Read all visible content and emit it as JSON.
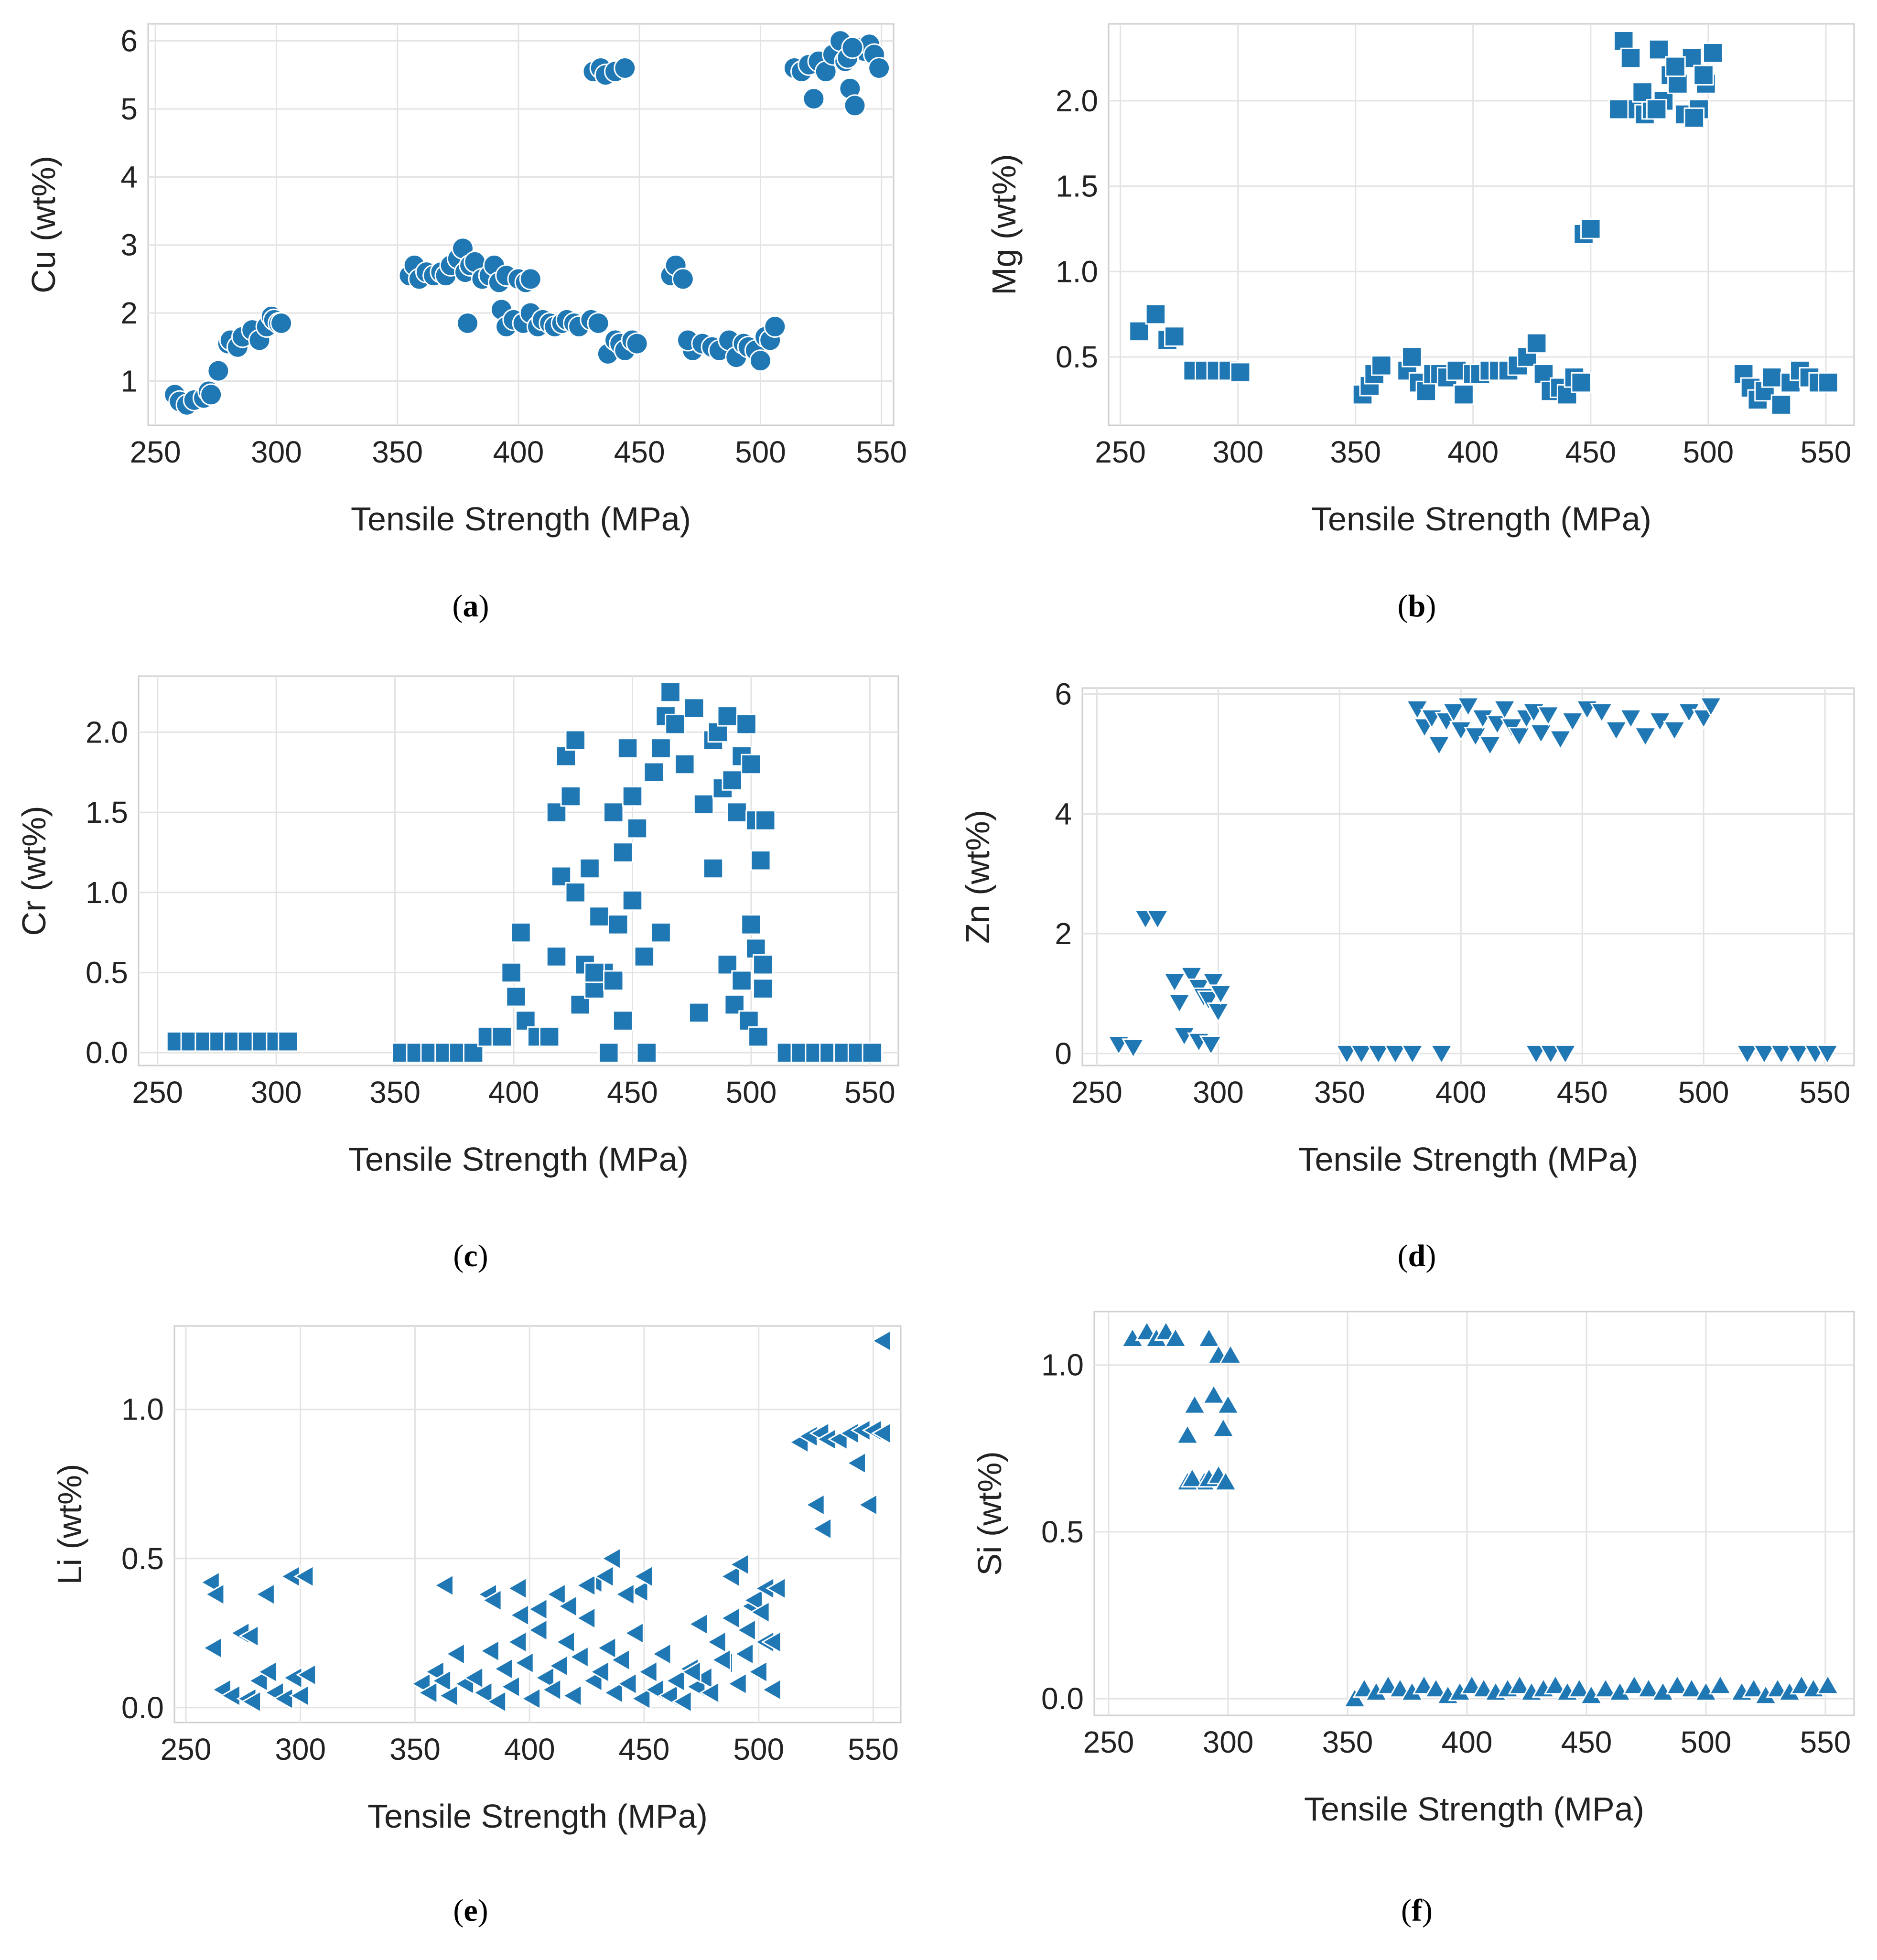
{
  "figure": {
    "panel_labels": [
      "(a)",
      "(b)",
      "(c)",
      "(d)",
      "(e)",
      "(f)"
    ],
    "panel_letters": [
      "a",
      "b",
      "c",
      "d",
      "e",
      "f"
    ]
  },
  "colors": {
    "marker": "#1f77b4",
    "marker_edge": "#ffffff",
    "grid": "#e3e3e3",
    "frame": "#cfcfcf",
    "text": "#222222"
  },
  "chart_data": [
    {
      "id": "a",
      "type": "scatter",
      "marker": "circle",
      "xlabel": "Tensile Strength (MPa)",
      "ylabel": "Cu (wt%)",
      "xlim": [
        247,
        555
      ],
      "ylim": [
        0.35,
        6.25
      ],
      "xticks": [
        250,
        300,
        350,
        400,
        450,
        500,
        550
      ],
      "xtick_labels": [
        "250",
        "300",
        "350",
        "400",
        "450",
        "500",
        "550"
      ],
      "yticks": [
        1,
        2,
        3,
        4,
        5,
        6
      ],
      "ytick_labels": [
        "1",
        "2",
        "3",
        "4",
        "5",
        "6"
      ],
      "x": [
        258,
        260,
        263,
        266,
        270,
        272,
        273,
        276,
        280,
        281,
        284,
        286,
        290,
        293,
        296,
        298,
        299,
        301,
        302,
        355,
        357,
        359,
        362,
        365,
        368,
        370,
        372,
        375,
        377,
        378,
        380,
        382,
        385,
        388,
        390,
        392,
        395,
        400,
        403,
        405,
        379,
        393,
        395,
        398,
        402,
        405,
        408,
        410,
        413,
        415,
        418,
        420,
        423,
        425,
        430,
        433,
        437,
        440,
        442,
        444,
        447,
        449,
        463,
        465,
        468,
        472,
        470,
        476,
        480,
        483,
        487,
        490,
        493,
        495,
        498,
        500,
        502,
        504,
        506,
        431,
        434,
        436,
        440,
        444,
        514,
        517,
        520,
        522,
        524,
        527,
        530,
        533,
        535,
        537,
        539,
        541,
        543,
        545,
        547,
        549,
        536,
        538
      ],
      "y": [
        0.8,
        0.7,
        0.65,
        0.72,
        0.75,
        0.85,
        0.8,
        1.15,
        1.55,
        1.6,
        1.5,
        1.65,
        1.75,
        1.6,
        1.8,
        1.95,
        1.9,
        1.85,
        1.85,
        2.55,
        2.7,
        2.5,
        2.6,
        2.55,
        2.6,
        2.55,
        2.7,
        2.8,
        2.95,
        2.6,
        2.7,
        2.75,
        2.5,
        2.55,
        2.7,
        2.45,
        2.55,
        2.5,
        2.45,
        2.5,
        1.85,
        2.05,
        1.8,
        1.9,
        1.85,
        2.0,
        1.8,
        1.9,
        1.85,
        1.8,
        1.85,
        1.9,
        1.85,
        1.8,
        1.9,
        1.85,
        1.4,
        1.6,
        1.55,
        1.45,
        1.6,
        1.55,
        2.55,
        2.7,
        2.5,
        1.45,
        1.6,
        1.55,
        1.5,
        1.45,
        1.6,
        1.35,
        1.55,
        1.5,
        1.45,
        1.3,
        1.65,
        1.6,
        1.8,
        5.55,
        5.6,
        5.5,
        5.55,
        5.6,
        5.6,
        5.55,
        5.65,
        5.15,
        5.7,
        5.55,
        5.8,
        6.0,
        5.7,
        5.3,
        5.05,
        5.9,
        5.85,
        5.95,
        5.8,
        5.6,
        5.75,
        5.9
      ]
    },
    {
      "id": "b",
      "type": "scatter",
      "marker": "square",
      "xlabel": "Tensile Strength (MPa)",
      "ylabel": "Mg (wt%)",
      "xlim": [
        245,
        562
      ],
      "ylim": [
        0.1,
        2.45
      ],
      "xticks": [
        250,
        300,
        350,
        400,
        450,
        500,
        550
      ],
      "xtick_labels": [
        "250",
        "300",
        "350",
        "400",
        "450",
        "500",
        "550"
      ],
      "yticks": [
        0.5,
        1.0,
        1.5,
        2.0
      ],
      "ytick_labels": [
        "0.5",
        "1.0",
        "1.5",
        "2.0"
      ],
      "x": [
        258,
        265,
        270,
        273,
        281,
        286,
        291,
        296,
        301,
        353,
        356,
        358,
        361,
        372,
        374,
        377,
        380,
        383,
        386,
        389,
        393,
        396,
        400,
        403,
        407,
        411,
        415,
        419,
        423,
        427,
        430,
        433,
        437,
        440,
        443,
        446,
        447,
        450,
        462,
        464,
        467,
        470,
        473,
        476,
        479,
        481,
        484,
        487,
        490,
        493,
        496,
        499,
        502,
        472,
        478,
        486,
        494,
        498,
        515,
        518,
        521,
        524,
        527,
        531,
        535,
        539,
        543,
        547,
        551
      ],
      "y": [
        0.65,
        0.75,
        0.6,
        0.62,
        0.42,
        0.42,
        0.42,
        0.42,
        0.41,
        0.28,
        0.33,
        0.4,
        0.45,
        0.42,
        0.5,
        0.35,
        0.3,
        0.4,
        0.4,
        0.38,
        0.42,
        0.28,
        0.4,
        0.4,
        0.42,
        0.42,
        0.42,
        0.45,
        0.5,
        0.58,
        0.4,
        0.3,
        0.32,
        0.28,
        0.38,
        0.35,
        1.22,
        1.25,
        1.95,
        2.35,
        2.25,
        1.95,
        1.92,
        1.95,
        2.3,
        2.0,
        2.15,
        2.1,
        1.92,
        2.25,
        1.95,
        2.1,
        2.28,
        2.05,
        1.95,
        2.2,
        1.9,
        2.15,
        0.4,
        0.32,
        0.25,
        0.3,
        0.38,
        0.22,
        0.35,
        0.42,
        0.38,
        0.35,
        0.35
      ]
    },
    {
      "id": "c",
      "type": "scatter",
      "marker": "square",
      "xlabel": "Tensile Strength (MPa)",
      "ylabel": "Cr (wt%)",
      "xlim": [
        242,
        562
      ],
      "ylim": [
        -0.08,
        2.35
      ],
      "xticks": [
        250,
        300,
        350,
        400,
        450,
        500,
        550
      ],
      "xtick_labels": [
        "250",
        "300",
        "350",
        "400",
        "450",
        "500",
        "550"
      ],
      "yticks": [
        0.0,
        0.5,
        1.0,
        1.5,
        2.0
      ],
      "ytick_labels": [
        "0.0",
        "0.5",
        "1.0",
        "1.5",
        "2.0"
      ],
      "x": [
        258,
        264,
        270,
        276,
        282,
        288,
        294,
        300,
        305,
        353,
        359,
        365,
        371,
        377,
        383,
        389,
        395,
        399,
        401,
        403,
        405,
        410,
        415,
        418,
        420,
        422,
        424,
        426,
        428,
        430,
        432,
        434,
        436,
        438,
        440,
        442,
        444,
        446,
        448,
        450,
        452,
        455,
        459,
        462,
        464,
        466,
        468,
        472,
        476,
        480,
        484,
        486,
        488,
        490,
        492,
        494,
        496,
        498,
        500,
        502,
        504,
        506,
        490,
        493,
        496,
        499,
        502,
        505,
        500,
        503,
        505,
        515,
        521,
        527,
        533,
        539,
        545,
        551,
        418,
        426,
        434,
        442,
        450,
        446,
        456,
        462,
        484,
        478
      ],
      "y": [
        0.07,
        0.07,
        0.07,
        0.07,
        0.07,
        0.07,
        0.07,
        0.07,
        0.07,
        0.0,
        0.0,
        0.0,
        0.0,
        0.0,
        0.0,
        0.1,
        0.1,
        0.5,
        0.35,
        0.75,
        0.2,
        0.1,
        0.1,
        1.5,
        1.1,
        1.85,
        1.6,
        1.95,
        0.3,
        0.55,
        1.15,
        0.4,
        0.85,
        0.5,
        0.0,
        1.5,
        0.8,
        1.25,
        1.9,
        1.6,
        1.4,
        0.6,
        1.75,
        1.9,
        2.1,
        2.25,
        2.05,
        1.8,
        2.15,
        1.55,
        1.95,
        2.0,
        1.65,
        2.1,
        1.7,
        1.5,
        1.85,
        2.05,
        1.8,
        1.45,
        1.2,
        1.45,
        0.55,
        0.3,
        0.45,
        0.2,
        0.65,
        0.4,
        0.8,
        0.1,
        0.55,
        0.0,
        0.0,
        0.0,
        0.0,
        0.0,
        0.0,
        0.0,
        0.6,
        1.0,
        0.5,
        0.45,
        0.95,
        0.2,
        0.0,
        0.75,
        1.15,
        0.25
      ]
    },
    {
      "id": "d",
      "type": "scatter",
      "marker": "triangle-down",
      "xlabel": "Tensile Strength (MPa)",
      "ylabel": "Zn (wt%)",
      "xlim": [
        244,
        562
      ],
      "ylim": [
        -0.2,
        6.1
      ],
      "xticks": [
        250,
        300,
        350,
        400,
        450,
        500,
        550
      ],
      "xtick_labels": [
        "250",
        "300",
        "350",
        "400",
        "450",
        "500",
        "550"
      ],
      "yticks": [
        0,
        2,
        4,
        6
      ],
      "ytick_labels": [
        "0",
        "2",
        "4",
        "6"
      ],
      "x": [
        259,
        265,
        270,
        275,
        282,
        284,
        286,
        289,
        292,
        294,
        296,
        298,
        300,
        301,
        292,
        297,
        353,
        359,
        366,
        373,
        380,
        392,
        431,
        437,
        443,
        518,
        525,
        532,
        539,
        546,
        551,
        382,
        385,
        388,
        391,
        394,
        397,
        400,
        403,
        406,
        409,
        412,
        415,
        418,
        421,
        424,
        427,
        430,
        433,
        436,
        441,
        446,
        452,
        458,
        464,
        470,
        476,
        482,
        488,
        494,
        500,
        503
      ],
      "y": [
        0.15,
        0.1,
        2.25,
        2.25,
        1.2,
        0.85,
        0.3,
        1.3,
        1.1,
        0.95,
        0.9,
        1.2,
        0.7,
        1.0,
        0.2,
        0.15,
        0.0,
        0.0,
        0.0,
        0.0,
        0.0,
        0.0,
        0.0,
        0.0,
        0.0,
        0.0,
        0.0,
        0.0,
        0.0,
        0.0,
        0.0,
        5.75,
        5.45,
        5.6,
        5.15,
        5.55,
        5.7,
        5.4,
        5.8,
        5.3,
        5.6,
        5.15,
        5.5,
        5.75,
        5.45,
        5.3,
        5.6,
        5.7,
        5.35,
        5.65,
        5.25,
        5.55,
        5.75,
        5.7,
        5.4,
        5.6,
        5.3,
        5.55,
        5.4,
        5.7,
        5.6,
        5.8
      ]
    },
    {
      "id": "e",
      "type": "scatter",
      "marker": "triangle-left",
      "xlabel": "Tensile Strength (MPa)",
      "ylabel": "Li (wt%)",
      "xlim": [
        245,
        562
      ],
      "ylim": [
        -0.05,
        1.28
      ],
      "xticks": [
        250,
        300,
        350,
        400,
        450,
        500,
        550
      ],
      "xtick_labels": [
        "250",
        "300",
        "350",
        "400",
        "450",
        "500",
        "550"
      ],
      "yticks": [
        0.0,
        0.5,
        1.0
      ],
      "ytick_labels": [
        "0.0",
        "0.5",
        "1.0"
      ],
      "x": [
        261,
        263,
        266,
        270,
        274,
        277,
        279,
        282,
        286,
        289,
        293,
        297,
        300,
        303,
        262,
        278,
        285,
        296,
        302,
        353,
        356,
        359,
        362,
        365,
        368,
        372,
        376,
        380,
        383,
        386,
        389,
        392,
        395,
        398,
        401,
        404,
        407,
        410,
        413,
        416,
        419,
        422,
        425,
        428,
        431,
        434,
        437,
        440,
        443,
        446,
        449,
        452,
        455,
        458,
        461,
        464,
        467,
        470,
        473,
        476,
        479,
        482,
        485,
        488,
        491,
        494,
        497,
        500,
        503,
        506,
        363,
        382,
        395,
        412,
        428,
        436,
        448,
        471,
        488,
        492,
        498,
        503,
        508,
        384,
        396,
        404,
        417,
        425,
        433,
        442,
        450,
        474,
        484,
        495,
        501,
        506,
        518,
        522,
        527,
        530,
        535,
        540,
        545,
        550,
        554,
        525,
        528,
        543,
        548,
        554
      ],
      "y": [
        0.42,
        0.38,
        0.06,
        0.04,
        0.25,
        0.03,
        0.02,
        0.09,
        0.12,
        0.05,
        0.03,
        0.1,
        0.04,
        0.11,
        0.2,
        0.24,
        0.38,
        0.44,
        0.44,
        0.08,
        0.05,
        0.12,
        0.09,
        0.04,
        0.18,
        0.08,
        0.1,
        0.05,
        0.19,
        0.02,
        0.13,
        0.07,
        0.22,
        0.15,
        0.03,
        0.26,
        0.1,
        0.06,
        0.14,
        0.22,
        0.04,
        0.17,
        0.3,
        0.09,
        0.12,
        0.2,
        0.05,
        0.16,
        0.08,
        0.25,
        0.03,
        0.12,
        0.06,
        0.18,
        0.04,
        0.09,
        0.02,
        0.13,
        0.07,
        0.1,
        0.05,
        0.22,
        0.15,
        0.3,
        0.08,
        0.18,
        0.34,
        0.12,
        0.22,
        0.06,
        0.41,
        0.38,
        0.4,
        0.38,
        0.42,
        0.5,
        0.39,
        0.12,
        0.44,
        0.48,
        0.36,
        0.4,
        0.4,
        0.36,
        0.31,
        0.33,
        0.34,
        0.41,
        0.44,
        0.38,
        0.44,
        0.28,
        0.16,
        0.26,
        0.32,
        0.22,
        0.89,
        0.91,
        0.92,
        0.9,
        0.9,
        0.92,
        0.93,
        0.93,
        0.92,
        0.68,
        0.6,
        0.82,
        0.68,
        1.23
      ]
    },
    {
      "id": "f",
      "type": "scatter",
      "marker": "triangle-up",
      "xlabel": "Tensile Strength (MPa)",
      "ylabel": "Si (wt%)",
      "xlim": [
        244,
        562
      ],
      "ylim": [
        -0.05,
        1.16
      ],
      "xticks": [
        250,
        300,
        350,
        400,
        450,
        500,
        550
      ],
      "xtick_labels": [
        "250",
        "300",
        "350",
        "400",
        "450",
        "500",
        "550"
      ],
      "yticks": [
        0.0,
        0.5,
        1.0
      ],
      "ytick_labels": [
        "0.0",
        "0.5",
        "1.0"
      ],
      "x": [
        260,
        266,
        270,
        274,
        278,
        283,
        286,
        290,
        292,
        294,
        296,
        298,
        300,
        301,
        283,
        285,
        292,
        296,
        299,
        353,
        357,
        362,
        367,
        372,
        377,
        382,
        387,
        392,
        397,
        402,
        407,
        412,
        417,
        422,
        427,
        432,
        437,
        442,
        447,
        452,
        458,
        464,
        470,
        476,
        482,
        488,
        494,
        500,
        506,
        515,
        520,
        525,
        530,
        535,
        540,
        545,
        551
      ],
      "y": [
        1.08,
        1.1,
        1.08,
        1.1,
        1.08,
        0.79,
        0.88,
        0.65,
        1.08,
        0.91,
        1.03,
        0.81,
        0.88,
        1.03,
        0.65,
        0.66,
        0.66,
        0.67,
        0.65,
        0.0,
        0.03,
        0.02,
        0.04,
        0.03,
        0.02,
        0.04,
        0.03,
        0.01,
        0.02,
        0.04,
        0.03,
        0.02,
        0.03,
        0.04,
        0.02,
        0.03,
        0.04,
        0.02,
        0.03,
        0.01,
        0.03,
        0.02,
        0.04,
        0.03,
        0.02,
        0.04,
        0.03,
        0.02,
        0.04,
        0.02,
        0.03,
        0.01,
        0.03,
        0.02,
        0.04,
        0.03,
        0.04
      ]
    }
  ]
}
